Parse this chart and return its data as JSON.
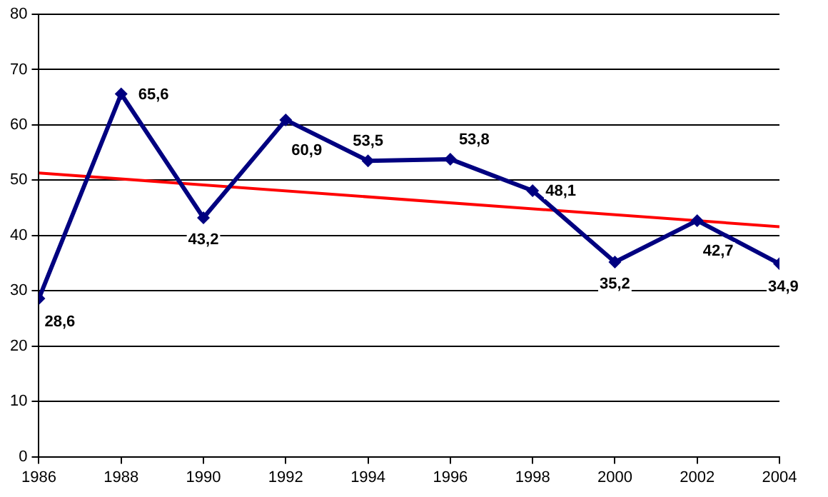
{
  "chart_data": {
    "type": "line",
    "x": [
      1986,
      1988,
      1990,
      1992,
      1994,
      1996,
      1998,
      2000,
      2002,
      2004
    ],
    "xlim": [
      1986,
      2004
    ],
    "xticks": [
      1986,
      1988,
      1990,
      1992,
      1994,
      1996,
      1998,
      2000,
      2002,
      2004
    ],
    "ylim": [
      0,
      80
    ],
    "yticks": [
      0,
      10,
      20,
      30,
      40,
      50,
      60,
      70,
      80
    ],
    "grid": "y",
    "legend": false,
    "series": [
      {
        "color": "#000080",
        "marker": "diamond",
        "values": [
          28.6,
          65.6,
          43.2,
          60.9,
          53.5,
          53.8,
          48.1,
          35.2,
          42.7,
          34.9
        ],
        "value_labels": [
          "28,6",
          "65,6",
          "43,2",
          "60,9",
          "53,5",
          "53,8",
          "48,1",
          "35,2",
          "42,7",
          "34,9"
        ]
      },
      {
        "type": "line",
        "color": "#ff0000",
        "marker": "none",
        "x": [
          1986,
          2004
        ],
        "values": [
          51.3,
          41.6
        ]
      }
    ]
  }
}
